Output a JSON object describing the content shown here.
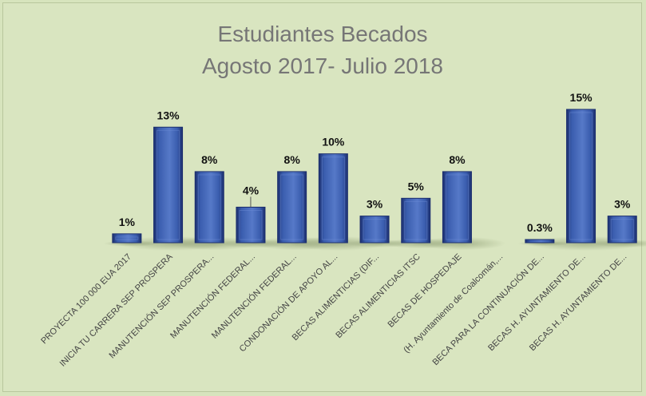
{
  "chart_data": {
    "type": "bar",
    "title_lines": [
      "Estudiantes Becados",
      "Agosto 2017- Julio 2018"
    ],
    "categories": [
      "PROYECTA 100 000 EUA 2017",
      "INICIA TU CARRERA SEP PROSPERA",
      "MANUTENCIÓN SEP PROSPERA...",
      "MANUTENCIÓN FEDERAL...",
      "MANUTENCIÓN FEDERAL...",
      "CONDONACIÓN DE APOYO AL...",
      "BECAS ALIMENTICIAS (DIF...",
      "BECAS ALIMENTICIAS ITSC",
      "BECAS DE HOSPEDAJE",
      "(H. Ayuntamiento de Coalcomán,...",
      "BECA PARA LA CONTINUACIÓN DE...",
      "BECAS H. AYUNTAMIENTO DE...",
      "BECAS H. AYUNTAMIENTO DE..."
    ],
    "values": [
      1,
      13,
      8,
      4,
      8,
      10,
      3,
      5,
      8,
      0,
      0.3,
      15,
      3
    ],
    "data_labels": [
      "1%",
      "13%",
      "8%",
      "4%",
      "8%",
      "10%",
      "3%",
      "5%",
      "8%",
      "",
      "0.3%",
      "15%",
      "3%"
    ],
    "ylim": [
      0,
      15
    ],
    "colors": {
      "bar": "#3a5dae",
      "bar_dark": "#1c2f6e",
      "bar_light": "#6f8fd6",
      "background": "#d7e4bd"
    },
    "grid": false,
    "legend": "none"
  }
}
